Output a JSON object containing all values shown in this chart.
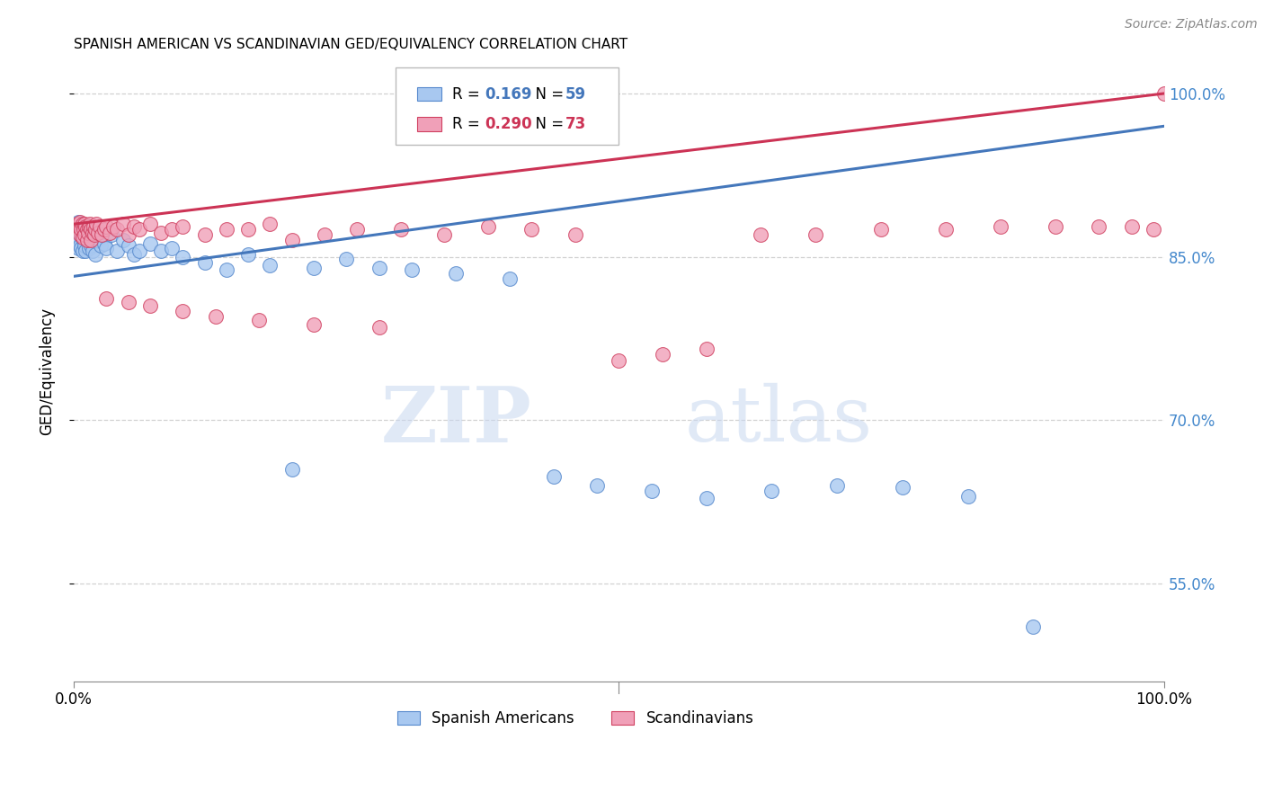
{
  "title": "SPANISH AMERICAN VS SCANDINAVIAN GED/EQUIVALENCY CORRELATION CHART",
  "source": "Source: ZipAtlas.com",
  "ylabel": "GED/Equivalency",
  "legend_blue": {
    "R": 0.169,
    "N": 59,
    "label": "Spanish Americans"
  },
  "legend_pink": {
    "R": 0.29,
    "N": 73,
    "label": "Scandinavians"
  },
  "xlim": [
    0.0,
    1.0
  ],
  "ylim": [
    0.46,
    1.03
  ],
  "ytick_vals": [
    0.55,
    0.7,
    0.85,
    1.0
  ],
  "ytick_labels": [
    "55.0%",
    "70.0%",
    "85.0%",
    "100.0%"
  ],
  "blue_fill": "#A8C8F0",
  "blue_edge": "#5588CC",
  "pink_fill": "#F0A0B8",
  "pink_edge": "#D04060",
  "blue_line": "#4477BB",
  "pink_line": "#CC3355",
  "grid_color": "#CCCCCC",
  "right_tick_color": "#4488CC",
  "blue_line_y0": 0.832,
  "blue_line_y1": 0.97,
  "pink_line_y0": 0.88,
  "pink_line_y1": 1.0,
  "blue_x": [
    0.002,
    0.003,
    0.004,
    0.004,
    0.005,
    0.005,
    0.006,
    0.006,
    0.007,
    0.007,
    0.008,
    0.008,
    0.009,
    0.01,
    0.01,
    0.011,
    0.012,
    0.013,
    0.014,
    0.015,
    0.015,
    0.016,
    0.017,
    0.018,
    0.02,
    0.022,
    0.025,
    0.028,
    0.03,
    0.035,
    0.04,
    0.045,
    0.05,
    0.055,
    0.06,
    0.07,
    0.08,
    0.09,
    0.1,
    0.12,
    0.14,
    0.16,
    0.18,
    0.2,
    0.22,
    0.25,
    0.28,
    0.31,
    0.35,
    0.4,
    0.44,
    0.48,
    0.53,
    0.58,
    0.64,
    0.7,
    0.76,
    0.82,
    0.88
  ],
  "blue_y": [
    0.875,
    0.87,
    0.882,
    0.858,
    0.875,
    0.865,
    0.878,
    0.86,
    0.87,
    0.858,
    0.872,
    0.855,
    0.865,
    0.87,
    0.86,
    0.855,
    0.865,
    0.87,
    0.858,
    0.875,
    0.868,
    0.86,
    0.855,
    0.87,
    0.852,
    0.865,
    0.86,
    0.862,
    0.858,
    0.87,
    0.855,
    0.865,
    0.86,
    0.852,
    0.855,
    0.862,
    0.855,
    0.858,
    0.85,
    0.845,
    0.838,
    0.852,
    0.842,
    0.655,
    0.84,
    0.848,
    0.84,
    0.838,
    0.835,
    0.83,
    0.648,
    0.64,
    0.635,
    0.628,
    0.635,
    0.64,
    0.638,
    0.63,
    0.51
  ],
  "pink_x": [
    0.003,
    0.004,
    0.005,
    0.006,
    0.006,
    0.007,
    0.008,
    0.008,
    0.009,
    0.01,
    0.01,
    0.011,
    0.012,
    0.012,
    0.013,
    0.014,
    0.015,
    0.016,
    0.016,
    0.017,
    0.018,
    0.019,
    0.02,
    0.021,
    0.022,
    0.024,
    0.026,
    0.028,
    0.03,
    0.033,
    0.036,
    0.04,
    0.045,
    0.05,
    0.055,
    0.06,
    0.07,
    0.08,
    0.09,
    0.1,
    0.12,
    0.14,
    0.16,
    0.18,
    0.2,
    0.23,
    0.26,
    0.3,
    0.34,
    0.38,
    0.42,
    0.46,
    0.5,
    0.54,
    0.58,
    0.63,
    0.68,
    0.74,
    0.8,
    0.85,
    0.9,
    0.94,
    0.97,
    0.99,
    1.0,
    0.03,
    0.05,
    0.07,
    0.1,
    0.13,
    0.17,
    0.22,
    0.28
  ],
  "pink_y": [
    0.88,
    0.875,
    0.878,
    0.882,
    0.87,
    0.875,
    0.88,
    0.868,
    0.875,
    0.88,
    0.87,
    0.878,
    0.875,
    0.865,
    0.872,
    0.878,
    0.88,
    0.875,
    0.865,
    0.872,
    0.878,
    0.87,
    0.875,
    0.88,
    0.872,
    0.878,
    0.87,
    0.875,
    0.878,
    0.872,
    0.878,
    0.875,
    0.88,
    0.87,
    0.878,
    0.875,
    0.88,
    0.872,
    0.875,
    0.878,
    0.87,
    0.875,
    0.875,
    0.88,
    0.865,
    0.87,
    0.875,
    0.875,
    0.87,
    0.878,
    0.875,
    0.87,
    0.755,
    0.76,
    0.765,
    0.87,
    0.87,
    0.875,
    0.875,
    0.878,
    0.878,
    0.878,
    0.878,
    0.875,
    1.0,
    0.812,
    0.808,
    0.805,
    0.8,
    0.795,
    0.792,
    0.788,
    0.785
  ]
}
